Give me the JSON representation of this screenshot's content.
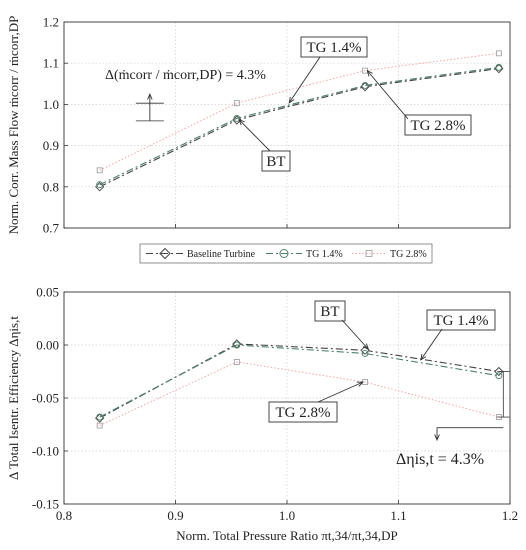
{
  "colors": {
    "bt": "#444444",
    "tg14": "#4f7f6a",
    "tg28": "#f0a8a8",
    "grid": "#d0d0d0",
    "axis": "#333333"
  },
  "chart_data": [
    {
      "type": "line",
      "xlim": [
        0.8,
        1.2
      ],
      "ylim": [
        0.7,
        1.2
      ],
      "yticks": [
        0.7,
        0.8,
        0.9,
        1.0,
        1.1,
        1.2
      ],
      "xticks": [
        0.8,
        0.9,
        1.0,
        1.1,
        1.2
      ],
      "ytick_labels": [
        "0.7",
        "0.8",
        "0.9",
        "1.0",
        "1.1",
        "1.2"
      ],
      "grid": true,
      "ylabel": "Norm. Corr. Mass Flow ṁcorr / ṁcorr,DP",
      "x": [
        0.832,
        0.955,
        1.07,
        1.19
      ],
      "series": [
        {
          "name": "Baseline Turbine",
          "values": [
            0.8,
            0.962,
            1.043,
            1.087
          ]
        },
        {
          "name": "TG 1.4%",
          "values": [
            0.805,
            0.966,
            1.046,
            1.09
          ]
        },
        {
          "name": "TG 2.8%",
          "values": [
            0.84,
            1.003,
            1.082,
            1.124
          ]
        }
      ],
      "annotations": {
        "delta": "Δ(ṁcorr / ṁcorr,DP) = 4.3%",
        "bt": "BT",
        "tg14": "TG 1.4%",
        "tg28": "TG 2.8%"
      }
    },
    {
      "type": "line",
      "xlim": [
        0.8,
        1.2
      ],
      "ylim": [
        -0.15,
        0.05
      ],
      "yticks": [
        -0.15,
        -0.1,
        -0.05,
        0.0,
        0.05
      ],
      "xticks": [
        0.8,
        0.9,
        1.0,
        1.1,
        1.2
      ],
      "ytick_labels": [
        "-0.15",
        "-0.10",
        "-0.05",
        "0.00",
        "0.05"
      ],
      "xtick_labels": [
        "0.8",
        "0.9",
        "1.0",
        "1.1",
        "1.2"
      ],
      "grid": true,
      "ylabel": "Δ Total Isentr. Efficiency Δηis,t",
      "xlabel": "Norm. Total Pressure Ratio πt,34/πt,34,DP",
      "x": [
        0.832,
        0.955,
        1.07,
        1.19
      ],
      "series": [
        {
          "name": "Baseline Turbine",
          "values": [
            -0.069,
            0.001,
            -0.005,
            -0.025
          ]
        },
        {
          "name": "TG 1.4%",
          "values": [
            -0.068,
            0.0,
            -0.008,
            -0.029
          ]
        },
        {
          "name": "TG 2.8%",
          "values": [
            -0.076,
            -0.016,
            -0.035,
            -0.068
          ]
        }
      ],
      "annotations": {
        "delta": "Δηis,t = 4.3%",
        "bt": "BT",
        "tg14": "TG 1.4%",
        "tg28": "TG 2.8%"
      }
    }
  ],
  "legend": {
    "items": [
      "Baseline Turbine",
      "TG 1.4%",
      "TG 2.8%"
    ]
  }
}
